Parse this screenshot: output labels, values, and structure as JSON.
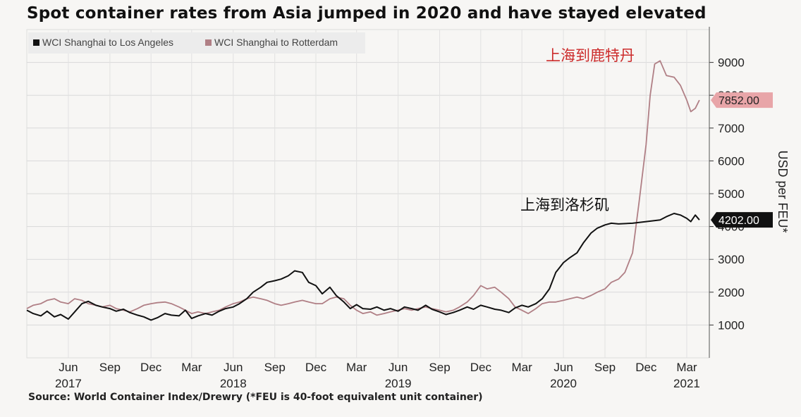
{
  "title": "Spot container rates from Asia jumped in 2020 and have stayed elevated",
  "source": "Source: World Container Index/Drewry (*FEU is 40-foot equivalent unit container)",
  "chart_data": {
    "type": "line",
    "title": "Spot container rates from Asia jumped in 2020 and have stayed elevated",
    "ylabel": "USD per FEU*",
    "ylim": [
      0,
      10000
    ],
    "yticks": [
      1000,
      2000,
      3000,
      4000,
      5000,
      6000,
      7000,
      8000,
      9000
    ],
    "ytick_labels": [
      "1000",
      "2000",
      "3000",
      "4000",
      "5000",
      "6000",
      "7000",
      "8000",
      "9000"
    ],
    "xlim": [
      "2017-03-01",
      "2021-04-20"
    ],
    "xticks": [
      {
        "date": "2017-06-01",
        "label": "Jun",
        "year": "2017"
      },
      {
        "date": "2017-09-01",
        "label": "Sep",
        "year": ""
      },
      {
        "date": "2017-12-01",
        "label": "Dec",
        "year": ""
      },
      {
        "date": "2018-03-01",
        "label": "Mar",
        "year": ""
      },
      {
        "date": "2018-06-01",
        "label": "Jun",
        "year": "2018"
      },
      {
        "date": "2018-09-01",
        "label": "Sep",
        "year": ""
      },
      {
        "date": "2018-12-01",
        "label": "Dec",
        "year": ""
      },
      {
        "date": "2019-03-01",
        "label": "Mar",
        "year": ""
      },
      {
        "date": "2019-06-01",
        "label": "Jun",
        "year": "2019"
      },
      {
        "date": "2019-09-01",
        "label": "Sep",
        "year": ""
      },
      {
        "date": "2019-12-01",
        "label": "Dec",
        "year": ""
      },
      {
        "date": "2020-03-01",
        "label": "Mar",
        "year": ""
      },
      {
        "date": "2020-06-01",
        "label": "Jun",
        "year": "2020"
      },
      {
        "date": "2020-09-01",
        "label": "Sep",
        "year": ""
      },
      {
        "date": "2020-12-01",
        "label": "Dec",
        "year": ""
      },
      {
        "date": "2021-03-01",
        "label": "Mar",
        "year": "2021"
      }
    ],
    "grid": true,
    "legend_position": "top-left",
    "series": [
      {
        "name": "WCI Shanghai to Los Angeles",
        "color": "#111111",
        "last_value_label": "4202.00",
        "annotation": "上海到洛杉矶",
        "points": [
          [
            "2017-03-01",
            1450
          ],
          [
            "2017-03-15",
            1350
          ],
          [
            "2017-04-01",
            1280
          ],
          [
            "2017-04-15",
            1420
          ],
          [
            "2017-05-01",
            1250
          ],
          [
            "2017-05-15",
            1320
          ],
          [
            "2017-06-01",
            1180
          ],
          [
            "2017-06-15",
            1400
          ],
          [
            "2017-07-01",
            1650
          ],
          [
            "2017-07-15",
            1720
          ],
          [
            "2017-08-01",
            1600
          ],
          [
            "2017-08-15",
            1550
          ],
          [
            "2017-09-01",
            1500
          ],
          [
            "2017-09-15",
            1420
          ],
          [
            "2017-10-01",
            1480
          ],
          [
            "2017-10-15",
            1380
          ],
          [
            "2017-11-01",
            1300
          ],
          [
            "2017-11-15",
            1250
          ],
          [
            "2017-12-01",
            1150
          ],
          [
            "2017-12-15",
            1220
          ],
          [
            "2018-01-01",
            1350
          ],
          [
            "2018-01-15",
            1300
          ],
          [
            "2018-02-01",
            1280
          ],
          [
            "2018-02-15",
            1450
          ],
          [
            "2018-03-01",
            1200
          ],
          [
            "2018-03-15",
            1280
          ],
          [
            "2018-04-01",
            1350
          ],
          [
            "2018-04-15",
            1300
          ],
          [
            "2018-05-01",
            1420
          ],
          [
            "2018-05-15",
            1500
          ],
          [
            "2018-06-01",
            1550
          ],
          [
            "2018-06-15",
            1650
          ],
          [
            "2018-07-01",
            1800
          ],
          [
            "2018-07-15",
            2000
          ],
          [
            "2018-08-01",
            2150
          ],
          [
            "2018-08-15",
            2300
          ],
          [
            "2018-09-01",
            2350
          ],
          [
            "2018-09-15",
            2400
          ],
          [
            "2018-10-01",
            2500
          ],
          [
            "2018-10-15",
            2650
          ],
          [
            "2018-11-01",
            2600
          ],
          [
            "2018-11-15",
            2300
          ],
          [
            "2018-12-01",
            2200
          ],
          [
            "2018-12-15",
            1950
          ],
          [
            "2019-01-01",
            2150
          ],
          [
            "2019-01-15",
            1900
          ],
          [
            "2019-02-01",
            1700
          ],
          [
            "2019-02-15",
            1500
          ],
          [
            "2019-03-01",
            1620
          ],
          [
            "2019-03-15",
            1500
          ],
          [
            "2019-04-01",
            1480
          ],
          [
            "2019-04-15",
            1550
          ],
          [
            "2019-05-01",
            1450
          ],
          [
            "2019-05-15",
            1500
          ],
          [
            "2019-06-01",
            1420
          ],
          [
            "2019-06-15",
            1550
          ],
          [
            "2019-07-01",
            1500
          ],
          [
            "2019-07-15",
            1450
          ],
          [
            "2019-08-01",
            1600
          ],
          [
            "2019-08-15",
            1480
          ],
          [
            "2019-09-01",
            1400
          ],
          [
            "2019-09-15",
            1320
          ],
          [
            "2019-10-01",
            1380
          ],
          [
            "2019-10-15",
            1450
          ],
          [
            "2019-11-01",
            1550
          ],
          [
            "2019-11-15",
            1480
          ],
          [
            "2019-12-01",
            1600
          ],
          [
            "2019-12-15",
            1550
          ],
          [
            "2020-01-01",
            1480
          ],
          [
            "2020-01-15",
            1450
          ],
          [
            "2020-02-01",
            1380
          ],
          [
            "2020-02-15",
            1520
          ],
          [
            "2020-03-01",
            1600
          ],
          [
            "2020-03-15",
            1550
          ],
          [
            "2020-04-01",
            1650
          ],
          [
            "2020-04-15",
            1800
          ],
          [
            "2020-05-01",
            2100
          ],
          [
            "2020-05-15",
            2600
          ],
          [
            "2020-06-01",
            2900
          ],
          [
            "2020-06-15",
            3050
          ],
          [
            "2020-07-01",
            3200
          ],
          [
            "2020-07-15",
            3500
          ],
          [
            "2020-08-01",
            3800
          ],
          [
            "2020-08-15",
            3950
          ],
          [
            "2020-09-01",
            4050
          ],
          [
            "2020-09-15",
            4100
          ],
          [
            "2020-10-01",
            4080
          ],
          [
            "2020-11-01",
            4100
          ],
          [
            "2020-12-01",
            4150
          ],
          [
            "2021-01-01",
            4200
          ],
          [
            "2021-01-15",
            4300
          ],
          [
            "2021-02-01",
            4400
          ],
          [
            "2021-02-15",
            4350
          ],
          [
            "2021-03-01",
            4250
          ],
          [
            "2021-03-10",
            4150
          ],
          [
            "2021-03-20",
            4350
          ],
          [
            "2021-03-29",
            4202
          ]
        ]
      },
      {
        "name": "WCI Shanghai to Rotterdam",
        "color": "#b07f85",
        "last_value_label": "7852.00",
        "annotation": "上海到鹿特丹",
        "points": [
          [
            "2017-03-01",
            1500
          ],
          [
            "2017-03-15",
            1600
          ],
          [
            "2017-04-01",
            1650
          ],
          [
            "2017-04-15",
            1750
          ],
          [
            "2017-05-01",
            1800
          ],
          [
            "2017-05-15",
            1700
          ],
          [
            "2017-06-01",
            1650
          ],
          [
            "2017-06-15",
            1800
          ],
          [
            "2017-07-01",
            1750
          ],
          [
            "2017-07-15",
            1650
          ],
          [
            "2017-08-01",
            1600
          ],
          [
            "2017-08-15",
            1550
          ],
          [
            "2017-09-01",
            1600
          ],
          [
            "2017-09-15",
            1500
          ],
          [
            "2017-10-01",
            1450
          ],
          [
            "2017-10-15",
            1400
          ],
          [
            "2017-11-01",
            1500
          ],
          [
            "2017-11-15",
            1600
          ],
          [
            "2017-12-01",
            1650
          ],
          [
            "2017-12-15",
            1680
          ],
          [
            "2018-01-01",
            1700
          ],
          [
            "2018-01-15",
            1650
          ],
          [
            "2018-02-01",
            1550
          ],
          [
            "2018-02-15",
            1450
          ],
          [
            "2018-03-01",
            1350
          ],
          [
            "2018-03-15",
            1400
          ],
          [
            "2018-04-01",
            1350
          ],
          [
            "2018-04-15",
            1400
          ],
          [
            "2018-05-01",
            1450
          ],
          [
            "2018-05-15",
            1550
          ],
          [
            "2018-06-01",
            1650
          ],
          [
            "2018-06-15",
            1700
          ],
          [
            "2018-07-01",
            1800
          ],
          [
            "2018-07-15",
            1850
          ],
          [
            "2018-08-01",
            1800
          ],
          [
            "2018-08-15",
            1750
          ],
          [
            "2018-09-01",
            1650
          ],
          [
            "2018-09-15",
            1600
          ],
          [
            "2018-10-01",
            1650
          ],
          [
            "2018-10-15",
            1700
          ],
          [
            "2018-11-01",
            1750
          ],
          [
            "2018-11-15",
            1700
          ],
          [
            "2018-12-01",
            1650
          ],
          [
            "2018-12-15",
            1650
          ],
          [
            "2019-01-01",
            1800
          ],
          [
            "2019-01-15",
            1850
          ],
          [
            "2019-02-01",
            1800
          ],
          [
            "2019-02-15",
            1600
          ],
          [
            "2019-03-01",
            1450
          ],
          [
            "2019-03-15",
            1350
          ],
          [
            "2019-04-01",
            1400
          ],
          [
            "2019-04-15",
            1300
          ],
          [
            "2019-05-01",
            1350
          ],
          [
            "2019-05-15",
            1400
          ],
          [
            "2019-06-01",
            1450
          ],
          [
            "2019-06-15",
            1500
          ],
          [
            "2019-07-01",
            1450
          ],
          [
            "2019-07-15",
            1500
          ],
          [
            "2019-08-01",
            1550
          ],
          [
            "2019-08-15",
            1500
          ],
          [
            "2019-09-01",
            1450
          ],
          [
            "2019-09-15",
            1400
          ],
          [
            "2019-10-01",
            1450
          ],
          [
            "2019-10-15",
            1550
          ],
          [
            "2019-11-01",
            1700
          ],
          [
            "2019-11-15",
            1900
          ],
          [
            "2019-12-01",
            2200
          ],
          [
            "2019-12-15",
            2100
          ],
          [
            "2020-01-01",
            2150
          ],
          [
            "2020-01-15",
            2000
          ],
          [
            "2020-02-01",
            1800
          ],
          [
            "2020-02-15",
            1550
          ],
          [
            "2020-03-01",
            1450
          ],
          [
            "2020-03-15",
            1350
          ],
          [
            "2020-04-01",
            1500
          ],
          [
            "2020-04-15",
            1650
          ],
          [
            "2020-05-01",
            1700
          ],
          [
            "2020-05-15",
            1700
          ],
          [
            "2020-06-01",
            1750
          ],
          [
            "2020-06-15",
            1800
          ],
          [
            "2020-07-01",
            1850
          ],
          [
            "2020-07-15",
            1800
          ],
          [
            "2020-08-01",
            1900
          ],
          [
            "2020-08-15",
            2000
          ],
          [
            "2020-09-01",
            2100
          ],
          [
            "2020-09-15",
            2300
          ],
          [
            "2020-10-01",
            2400
          ],
          [
            "2020-10-15",
            2600
          ],
          [
            "2020-11-01",
            3200
          ],
          [
            "2020-11-15",
            4700
          ],
          [
            "2020-12-01",
            6500
          ],
          [
            "2020-12-10",
            8000
          ],
          [
            "2020-12-20",
            8950
          ],
          [
            "2021-01-01",
            9050
          ],
          [
            "2021-01-15",
            8600
          ],
          [
            "2021-02-01",
            8550
          ],
          [
            "2021-02-15",
            8300
          ],
          [
            "2021-03-01",
            7850
          ],
          [
            "2021-03-10",
            7500
          ],
          [
            "2021-03-20",
            7600
          ],
          [
            "2021-03-29",
            7852
          ]
        ]
      }
    ]
  }
}
